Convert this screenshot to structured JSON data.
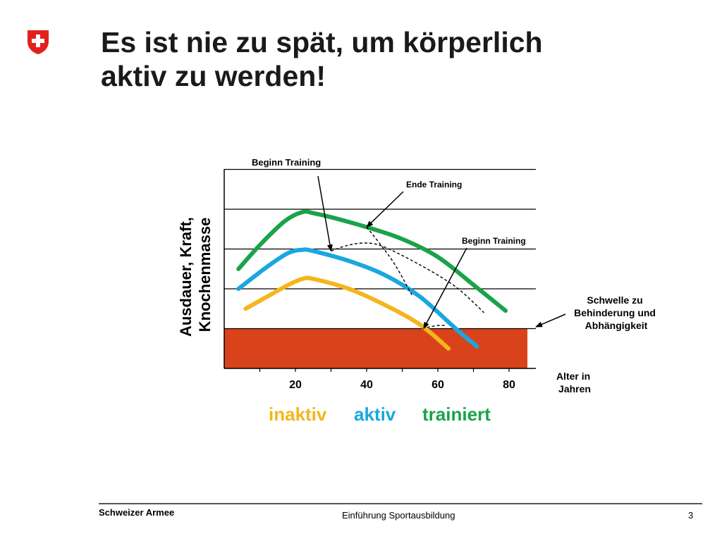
{
  "slide": {
    "title_line1": "Es ist nie zu spät, um körperlich",
    "title_line2": "aktiv zu werden!"
  },
  "footer": {
    "organization": "Schweizer Armee",
    "course": "Einführung Sportausbildung",
    "page_number": "3"
  },
  "colors": {
    "inaktiv": "#f5b51c",
    "aktiv": "#1aa7e0",
    "trainiert": "#1aa34a",
    "threshold_zone": "#d9431b",
    "swiss_red": "#e2211c"
  },
  "chart_data": {
    "type": "line",
    "ylabel_line1": "Ausdauer, Kraft,",
    "ylabel_line2": "Knochenmasse",
    "xlabel_line1": "Alter in",
    "xlabel_line2": "Jahren",
    "xlim": [
      0,
      86
    ],
    "ylim": [
      0,
      5
    ],
    "x_tick_labels": [
      "20",
      "40",
      "60",
      "80"
    ],
    "x_ticks": [
      20,
      40,
      60,
      80
    ],
    "x_minor_ticks": [
      10,
      30,
      50,
      70
    ],
    "y_gridlines": [
      1,
      2,
      3,
      4,
      5
    ],
    "threshold": {
      "y": 1,
      "label_line1": "Schwelle zu",
      "label_line2": "Behinderung und",
      "label_line3": "Abhängigkeit"
    },
    "series": [
      {
        "name": "inaktiv",
        "color": "#f5b51c",
        "points": [
          [
            6,
            1.5
          ],
          [
            12,
            1.8
          ],
          [
            18,
            2.1
          ],
          [
            22,
            2.25
          ],
          [
            25,
            2.25
          ],
          [
            35,
            2.0
          ],
          [
            45,
            1.6
          ],
          [
            55,
            1.1
          ],
          [
            63,
            0.5
          ]
        ]
      },
      {
        "name": "aktiv",
        "color": "#1aa7e0",
        "points": [
          [
            4,
            2.0
          ],
          [
            12,
            2.55
          ],
          [
            18,
            2.9
          ],
          [
            22,
            2.98
          ],
          [
            25,
            2.95
          ],
          [
            35,
            2.7
          ],
          [
            45,
            2.35
          ],
          [
            55,
            1.8
          ],
          [
            65,
            1.0
          ],
          [
            71,
            0.55
          ]
        ]
      },
      {
        "name": "trainiert",
        "color": "#1aa34a",
        "points": [
          [
            4,
            2.5
          ],
          [
            10,
            3.1
          ],
          [
            17,
            3.7
          ],
          [
            22,
            3.93
          ],
          [
            25,
            3.9
          ],
          [
            30,
            3.8
          ],
          [
            40,
            3.55
          ],
          [
            50,
            3.25
          ],
          [
            60,
            2.8
          ],
          [
            70,
            2.1
          ],
          [
            79,
            1.45
          ]
        ]
      }
    ],
    "dashed_paths": [
      {
        "points": [
          [
            30,
            2.95
          ],
          [
            35,
            3.1
          ],
          [
            40,
            3.15
          ],
          [
            45,
            3.05
          ],
          [
            55,
            2.6
          ],
          [
            65,
            2.05
          ],
          [
            73,
            1.4
          ]
        ]
      },
      {
        "points": [
          [
            40,
            3.55
          ],
          [
            44,
            3.1
          ],
          [
            48,
            2.6
          ],
          [
            53,
            1.8
          ]
        ]
      },
      {
        "points": [
          [
            57,
            1.03
          ],
          [
            60,
            1.08
          ],
          [
            62,
            1.08
          ]
        ]
      }
    ],
    "annotations": [
      {
        "text": "Beginn Training",
        "arrow_to": [
          30,
          2.95
        ]
      },
      {
        "text": "Ende Training",
        "arrow_to": [
          40,
          3.55
        ]
      },
      {
        "text": "Beginn Training",
        "arrow_to": [
          56,
          1.0
        ]
      }
    ],
    "legend": [
      "inaktiv",
      "aktiv",
      "trainiert"
    ]
  }
}
